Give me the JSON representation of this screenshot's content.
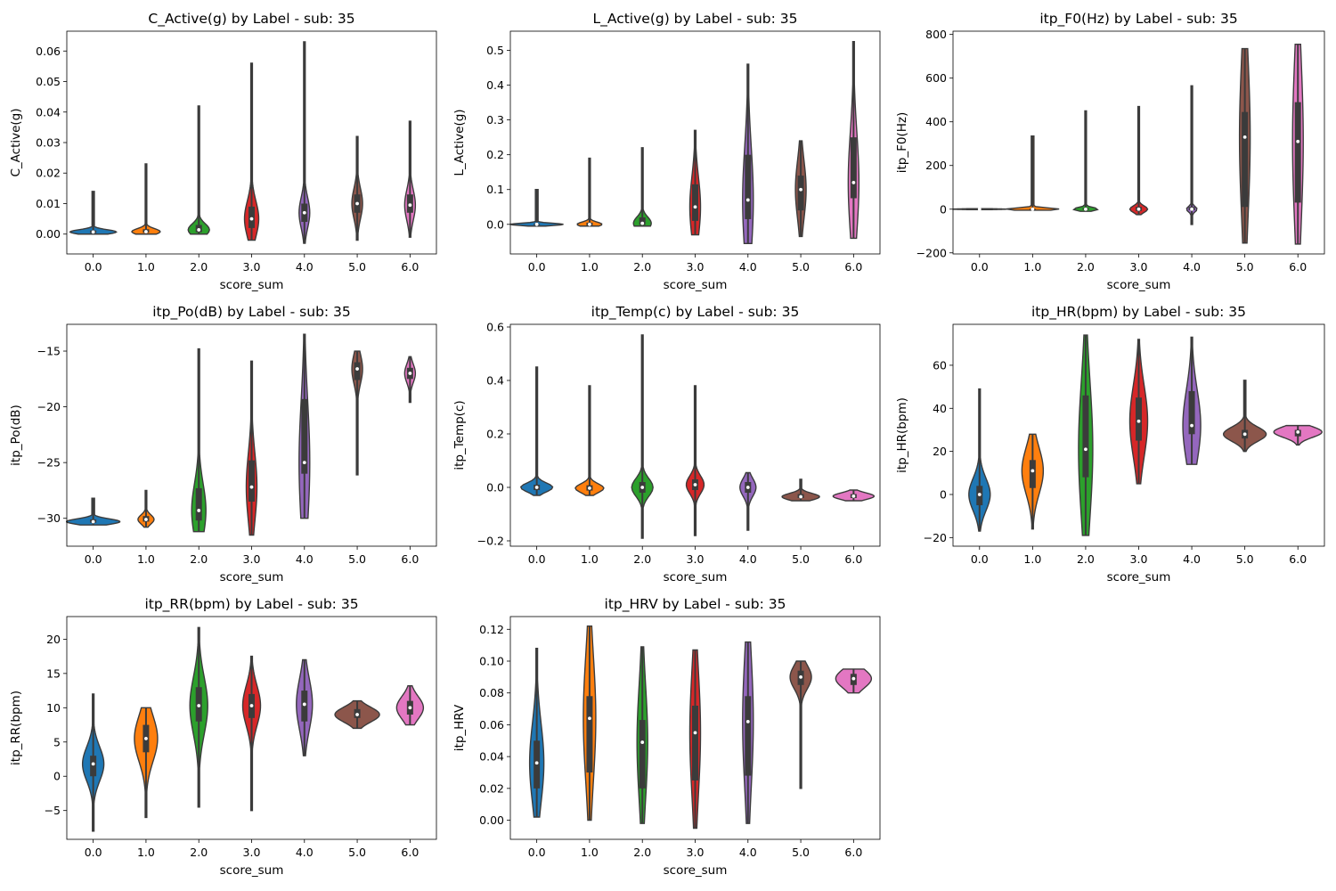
{
  "chart_data": [
    {
      "type": "violin",
      "title": "C_Active(g) by Label - sub: 35",
      "xlabel": "score_sum",
      "ylabel": "C_Active(g)",
      "categories": [
        "0.0",
        "1.0",
        "2.0",
        "3.0",
        "4.0",
        "5.0",
        "6.0"
      ],
      "ylim": [
        -0.0065,
        0.0665
      ],
      "yticks": [
        0.0,
        0.01,
        0.02,
        0.03,
        0.04,
        0.05,
        0.06
      ],
      "yticklabels": [
        "0.00",
        "0.01",
        "0.02",
        "0.03",
        "0.04",
        "0.05",
        "0.06"
      ],
      "violins": [
        {
          "min": 0.0,
          "max": 0.014,
          "q1": 0.0003,
          "median": 0.0007,
          "q3": 0.0012,
          "colors": [
            "#1f77b4"
          ]
        },
        {
          "min": 0.0,
          "max": 0.023,
          "q1": 0.0004,
          "median": 0.0008,
          "q3": 0.0016,
          "colors": [
            "#ff7f0e"
          ]
        },
        {
          "min": 0.0,
          "max": 0.042,
          "q1": 0.0006,
          "median": 0.0014,
          "q3": 0.003,
          "colors": [
            "#2ca02c"
          ]
        },
        {
          "min": -0.002,
          "max": 0.056,
          "q1": 0.002,
          "median": 0.005,
          "q3": 0.009,
          "colors": [
            "#d62728"
          ]
        },
        {
          "min": -0.003,
          "max": 0.063,
          "q1": 0.004,
          "median": 0.007,
          "q3": 0.01,
          "colors": [
            "#9467bd"
          ]
        },
        {
          "min": -0.002,
          "max": 0.032,
          "q1": 0.007,
          "median": 0.01,
          "q3": 0.013,
          "colors": [
            "#8c564b"
          ]
        },
        {
          "min": -0.001,
          "max": 0.037,
          "q1": 0.007,
          "median": 0.0095,
          "q3": 0.013,
          "colors": [
            "#e377c2"
          ]
        }
      ]
    },
    {
      "type": "violin",
      "title": "L_Active(g) by Label - sub: 35",
      "xlabel": "score_sum",
      "ylabel": "L_Active(g)",
      "categories": [
        "0.0",
        "1.0",
        "2.0",
        "3.0",
        "4.0",
        "5.0",
        "6.0"
      ],
      "ylim": [
        -0.085,
        0.555
      ],
      "yticks": [
        0.0,
        0.1,
        0.2,
        0.3,
        0.4,
        0.5
      ],
      "yticklabels": [
        "0.0",
        "0.1",
        "0.2",
        "0.3",
        "0.4",
        "0.5"
      ],
      "violins": [
        {
          "min": -0.005,
          "max": 0.1,
          "q1": -0.002,
          "median": 0.0,
          "q3": 0.002,
          "colors": [
            "#1f77b4"
          ]
        },
        {
          "min": -0.005,
          "max": 0.19,
          "q1": -0.003,
          "median": 0.0,
          "q3": 0.005,
          "colors": [
            "#ff7f0e"
          ]
        },
        {
          "min": -0.005,
          "max": 0.22,
          "q1": -0.002,
          "median": 0.003,
          "q3": 0.02,
          "colors": [
            "#2ca02c"
          ]
        },
        {
          "min": -0.03,
          "max": 0.27,
          "q1": 0.01,
          "median": 0.05,
          "q3": 0.115,
          "colors": [
            "#d62728"
          ]
        },
        {
          "min": -0.055,
          "max": 0.46,
          "q1": 0.015,
          "median": 0.07,
          "q3": 0.2,
          "colors": [
            "#9467bd"
          ]
        },
        {
          "min": -0.035,
          "max": 0.24,
          "q1": 0.04,
          "median": 0.1,
          "q3": 0.14,
          "colors": [
            "#8c564b"
          ]
        },
        {
          "min": -0.04,
          "max": 0.525,
          "q1": 0.075,
          "median": 0.12,
          "q3": 0.25,
          "colors": [
            "#e377c2"
          ]
        }
      ]
    },
    {
      "type": "violin",
      "title": "itp_F0(Hz) by Label - sub: 35",
      "xlabel": "score_sum",
      "ylabel": "itp_F0(Hz)",
      "categories": [
        "0.0",
        "1.0",
        "2.0",
        "3.0",
        "4.0",
        "5.0",
        "6.0"
      ],
      "ylim": [
        -205,
        815
      ],
      "yticks": [
        -200,
        0,
        200,
        400,
        600,
        800
      ],
      "yticklabels": [
        "−200",
        "0",
        "200",
        "400",
        "600",
        "800"
      ],
      "violins": [
        {
          "min": -2,
          "max": 2,
          "q1": -1,
          "median": 0,
          "q3": 1,
          "colors": [
            "#1f77b4"
          ]
        },
        {
          "min": -5,
          "max": 335,
          "q1": -2,
          "median": 0,
          "q3": 2,
          "colors": [
            "#ff7f0e"
          ]
        },
        {
          "min": -10,
          "max": 450,
          "q1": -3,
          "median": 0,
          "q3": 5,
          "colors": [
            "#2ca02c"
          ]
        },
        {
          "min": -25,
          "max": 470,
          "q1": -8,
          "median": 0,
          "q3": 10,
          "colors": [
            "#d62728"
          ]
        },
        {
          "min": -70,
          "max": 565,
          "q1": -5,
          "median": 0,
          "q3": 10,
          "colors": [
            "#9467bd"
          ]
        },
        {
          "min": -155,
          "max": 735,
          "q1": 10,
          "median": 330,
          "q3": 445,
          "colors": [
            "#8c564b"
          ]
        },
        {
          "min": -160,
          "max": 755,
          "q1": 30,
          "median": 310,
          "q3": 490,
          "colors": [
            "#e377c2"
          ]
        }
      ]
    },
    {
      "type": "violin",
      "title": "itp_Po(dB) by Label - sub: 35",
      "xlabel": "score_sum",
      "ylabel": "itp_Po(dB)",
      "categories": [
        "0.0",
        "1.0",
        "2.0",
        "3.0",
        "4.0",
        "5.0",
        "6.0"
      ],
      "ylim": [
        -32.5,
        -12.6
      ],
      "yticks": [
        -30,
        -25,
        -20,
        -15
      ],
      "yticklabels": [
        "−30",
        "−25",
        "−20",
        "−15"
      ],
      "violins": [
        {
          "min": -30.6,
          "max": -28.2,
          "q1": -30.4,
          "median": -30.3,
          "q3": -30.1,
          "colors": [
            "#1f77b4"
          ]
        },
        {
          "min": -30.8,
          "max": -27.5,
          "q1": -30.3,
          "median": -30.1,
          "q3": -29.8,
          "colors": [
            "#ff7f0e"
          ]
        },
        {
          "min": -31.2,
          "max": -14.8,
          "q1": -30.2,
          "median": -29.3,
          "q3": -27.3,
          "colors": [
            "#2ca02c"
          ]
        },
        {
          "min": -31.5,
          "max": -15.9,
          "q1": -28.5,
          "median": -27.2,
          "q3": -24.8,
          "colors": [
            "#d62728"
          ]
        },
        {
          "min": -30.0,
          "max": -13.5,
          "q1": -26.0,
          "median": -25.0,
          "q3": -19.3,
          "colors": [
            "#9467bd"
          ]
        },
        {
          "min": -26.1,
          "max": -15.0,
          "q1": -17.6,
          "median": -16.6,
          "q3": -16.0,
          "colors": [
            "#8c564b"
          ]
        },
        {
          "min": -19.6,
          "max": -15.5,
          "q1": -17.5,
          "median": -17.0,
          "q3": -16.5,
          "colors": [
            "#e377c2"
          ]
        }
      ]
    },
    {
      "type": "violin",
      "title": "itp_Temp(c) by Label - sub: 35",
      "xlabel": "score_sum",
      "ylabel": "itp_Temp(c)",
      "categories": [
        "0.0",
        "1.0",
        "2.0",
        "3.0",
        "4.0",
        "5.0",
        "6.0"
      ],
      "ylim": [
        -0.22,
        0.61
      ],
      "yticks": [
        -0.2,
        0.0,
        0.2,
        0.4,
        0.6
      ],
      "yticklabels": [
        "−0.2",
        "0.0",
        "0.2",
        "0.4",
        "0.6"
      ],
      "violins": [
        {
          "min": -0.03,
          "max": 0.45,
          "q1": -0.01,
          "median": 0.0,
          "q3": 0.01,
          "colors": [
            "#1f77b4"
          ]
        },
        {
          "min": -0.03,
          "max": 0.38,
          "q1": -0.012,
          "median": -0.003,
          "q3": 0.008,
          "colors": [
            "#ff7f0e"
          ]
        },
        {
          "min": -0.19,
          "max": 0.57,
          "q1": -0.02,
          "median": 0.0,
          "q3": 0.02,
          "colors": [
            "#2ca02c"
          ]
        },
        {
          "min": -0.18,
          "max": 0.38,
          "q1": -0.01,
          "median": 0.01,
          "q3": 0.03,
          "colors": [
            "#d62728"
          ]
        },
        {
          "min": -0.16,
          "max": 0.055,
          "q1": -0.02,
          "median": 0.0,
          "q3": 0.02,
          "colors": [
            "#9467bd"
          ]
        },
        {
          "min": -0.05,
          "max": 0.03,
          "q1": -0.04,
          "median": -0.035,
          "q3": -0.025,
          "colors": [
            "#8c564b"
          ]
        },
        {
          "min": -0.05,
          "max": -0.01,
          "q1": -0.04,
          "median": -0.033,
          "q3": -0.025,
          "colors": [
            "#e377c2"
          ]
        }
      ]
    },
    {
      "type": "violin",
      "title": "itp_HR(bpm) by Label - sub: 35",
      "xlabel": "score_sum",
      "ylabel": "itp_HR(bpm)",
      "categories": [
        "0.0",
        "1.0",
        "2.0",
        "3.0",
        "4.0",
        "5.0",
        "6.0"
      ],
      "ylim": [
        -24,
        79
      ],
      "yticks": [
        -20,
        0,
        20,
        40,
        60
      ],
      "yticklabels": [
        "−20",
        "0",
        "20",
        "40",
        "60"
      ],
      "violins": [
        {
          "min": -17,
          "max": 49,
          "q1": -5,
          "median": 0,
          "q3": 4,
          "colors": [
            "#1f77b4"
          ]
        },
        {
          "min": -16,
          "max": 28,
          "q1": 3,
          "median": 11,
          "q3": 16,
          "colors": [
            "#ff7f0e"
          ]
        },
        {
          "min": -19,
          "max": 74,
          "q1": 8,
          "median": 21,
          "q3": 46,
          "colors": [
            "#2ca02c"
          ]
        },
        {
          "min": 5,
          "max": 72,
          "q1": 25,
          "median": 34,
          "q3": 45,
          "colors": [
            "#d62728"
          ]
        },
        {
          "min": 14,
          "max": 73,
          "q1": 28,
          "median": 32,
          "q3": 48,
          "colors": [
            "#9467bd"
          ]
        },
        {
          "min": 20,
          "max": 53,
          "q1": 26,
          "median": 28,
          "q3": 30,
          "colors": [
            "#8c564b"
          ]
        },
        {
          "min": 23,
          "max": 32,
          "q1": 27,
          "median": 29,
          "q3": 30,
          "colors": [
            "#e377c2"
          ]
        }
      ]
    },
    {
      "type": "violin",
      "title": "itp_RR(bpm) by Label - sub: 35",
      "xlabel": "score_sum",
      "ylabel": "itp_RR(bpm)",
      "categories": [
        "0.0",
        "1.0",
        "2.0",
        "3.0",
        "4.0",
        "5.0",
        "6.0"
      ],
      "ylim": [
        -9.2,
        23.3
      ],
      "yticks": [
        -5,
        0,
        5,
        10,
        15,
        20
      ],
      "yticklabels": [
        "−5",
        "0",
        "5",
        "10",
        "15",
        "20"
      ],
      "violins": [
        {
          "min": -8,
          "max": 12,
          "q1": 0,
          "median": 1.8,
          "q3": 3,
          "colors": [
            "#1f77b4"
          ]
        },
        {
          "min": -6,
          "max": 10,
          "q1": 3.5,
          "median": 5.5,
          "q3": 7.5,
          "colors": [
            "#ff7f0e"
          ]
        },
        {
          "min": -4.5,
          "max": 21.7,
          "q1": 8,
          "median": 10.3,
          "q3": 13,
          "colors": [
            "#2ca02c"
          ]
        },
        {
          "min": -5,
          "max": 17.5,
          "q1": 8.5,
          "median": 10.3,
          "q3": 12,
          "colors": [
            "#d62728"
          ]
        },
        {
          "min": 3,
          "max": 17,
          "q1": 8,
          "median": 10.5,
          "q3": 12.5,
          "colors": [
            "#9467bd"
          ]
        },
        {
          "min": 7,
          "max": 11,
          "q1": 8.5,
          "median": 9,
          "q3": 9.8,
          "colors": [
            "#8c564b"
          ]
        },
        {
          "min": 7.5,
          "max": 13.2,
          "q1": 9,
          "median": 10,
          "q3": 11,
          "colors": [
            "#e377c2"
          ]
        }
      ]
    },
    {
      "type": "violin",
      "title": "itp_HRV by Label - sub: 35",
      "xlabel": "score_sum",
      "ylabel": "itp_HRV",
      "categories": [
        "0.0",
        "1.0",
        "2.0",
        "3.0",
        "4.0",
        "5.0",
        "6.0"
      ],
      "ylim": [
        -0.012,
        0.128
      ],
      "yticks": [
        0.0,
        0.02,
        0.04,
        0.06,
        0.08,
        0.1,
        0.12
      ],
      "yticklabels": [
        "0.00",
        "0.02",
        "0.04",
        "0.06",
        "0.08",
        "0.10",
        "0.12"
      ],
      "violins": [
        {
          "min": 0.002,
          "max": 0.108,
          "q1": 0.02,
          "median": 0.036,
          "q3": 0.05,
          "colors": [
            "#1f77b4"
          ]
        },
        {
          "min": 0.0,
          "max": 0.122,
          "q1": 0.03,
          "median": 0.064,
          "q3": 0.078,
          "colors": [
            "#ff7f0e"
          ]
        },
        {
          "min": -0.002,
          "max": 0.109,
          "q1": 0.02,
          "median": 0.049,
          "q3": 0.063,
          "colors": [
            "#2ca02c"
          ]
        },
        {
          "min": -0.005,
          "max": 0.107,
          "q1": 0.025,
          "median": 0.055,
          "q3": 0.072,
          "colors": [
            "#d62728"
          ]
        },
        {
          "min": -0.002,
          "max": 0.112,
          "q1": 0.028,
          "median": 0.062,
          "q3": 0.078,
          "colors": [
            "#9467bd"
          ]
        },
        {
          "min": 0.02,
          "max": 0.1,
          "q1": 0.085,
          "median": 0.09,
          "q3": 0.094,
          "colors": [
            "#8c564b"
          ]
        },
        {
          "min": 0.08,
          "max": 0.095,
          "q1": 0.085,
          "median": 0.089,
          "q3": 0.092,
          "colors": [
            "#e377c2"
          ]
        }
      ]
    }
  ]
}
